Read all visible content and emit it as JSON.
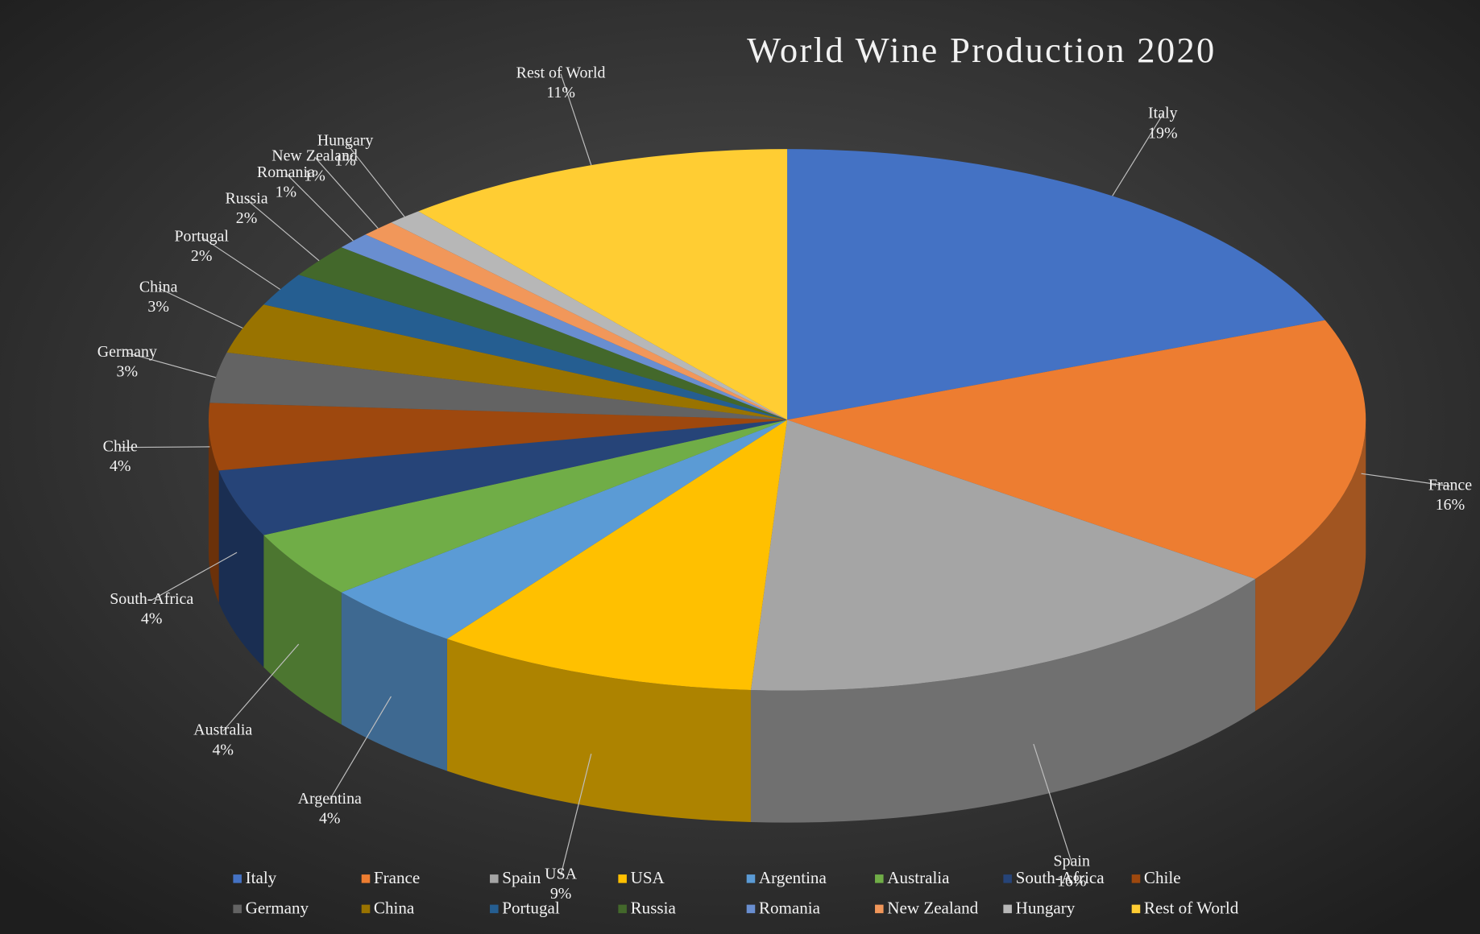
{
  "chart_data": {
    "type": "pie3d",
    "title": "World Wine Production 2020",
    "categories": [
      "Italy",
      "France",
      "Spain",
      "USA",
      "Argentina",
      "Australia",
      "South-Africa",
      "Chile",
      "Germany",
      "China",
      "Portugal",
      "Russia",
      "Romania",
      "New Zealand",
      "Hungary",
      "Rest of World"
    ],
    "series": [
      {
        "values": [
          19,
          16,
          16,
          9,
          4,
          4,
          4,
          4,
          3,
          3,
          2,
          2,
          1,
          1,
          1,
          11
        ],
        "value_labels": [
          "19%",
          "16%",
          "16%",
          "9%",
          "4%",
          "4%",
          "4%",
          "4%",
          "3%",
          "3%",
          "2%",
          "2%",
          "1%",
          "1%",
          "1%",
          "11%"
        ]
      }
    ],
    "colors": [
      "#4472c4",
      "#ed7d31",
      "#a5a5a5",
      "#ffc000",
      "#5b9bd5",
      "#70ad47",
      "#264478",
      "#9e480e",
      "#636363",
      "#997300",
      "#255e91",
      "#43682b",
      "#698ed0",
      "#f1975a",
      "#b7b7b7",
      "#ffcd33"
    ],
    "legend": "bottom"
  }
}
